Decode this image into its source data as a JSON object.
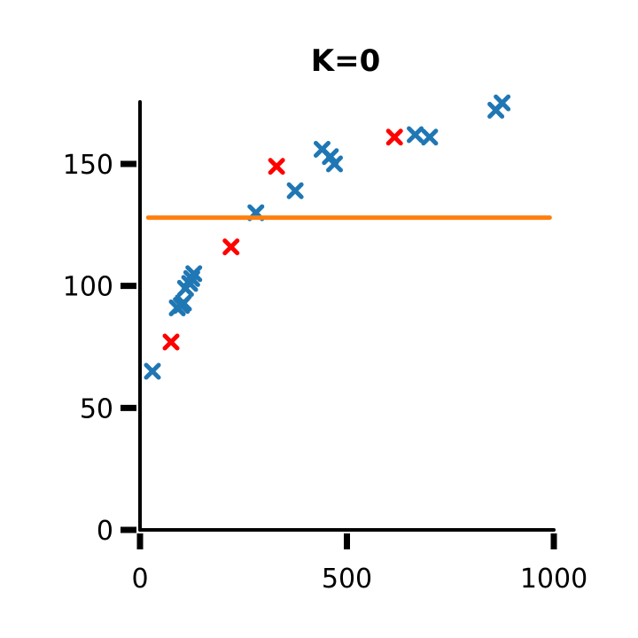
{
  "chart_data": {
    "type": "scatter",
    "title": "K=0",
    "xlabel": "",
    "ylabel": "",
    "xlim": [
      0,
      1000
    ],
    "ylim": [
      0,
      180
    ],
    "x_ticks": [
      0,
      500,
      1000
    ],
    "y_ticks": [
      0,
      50,
      100,
      150
    ],
    "grid": false,
    "series": [
      {
        "marker": "x",
        "color": "#1f77b4",
        "points": [
          [
            30,
            65
          ],
          [
            90,
            91
          ],
          [
            100,
            92
          ],
          [
            105,
            93
          ],
          [
            110,
            99
          ],
          [
            120,
            101
          ],
          [
            125,
            103
          ],
          [
            130,
            105
          ],
          [
            280,
            130
          ],
          [
            375,
            139
          ],
          [
            440,
            156
          ],
          [
            460,
            153
          ],
          [
            470,
            150
          ],
          [
            665,
            162
          ],
          [
            700,
            161
          ],
          [
            860,
            172
          ],
          [
            875,
            175
          ]
        ]
      },
      {
        "marker": "x",
        "color": "#ff0000",
        "points": [
          [
            75,
            77
          ],
          [
            220,
            116
          ],
          [
            330,
            149
          ],
          [
            615,
            161
          ]
        ]
      },
      {
        "marker": "line",
        "color": "#ff7f0e",
        "points": [
          [
            20,
            128
          ],
          [
            990,
            128
          ]
        ]
      }
    ]
  }
}
